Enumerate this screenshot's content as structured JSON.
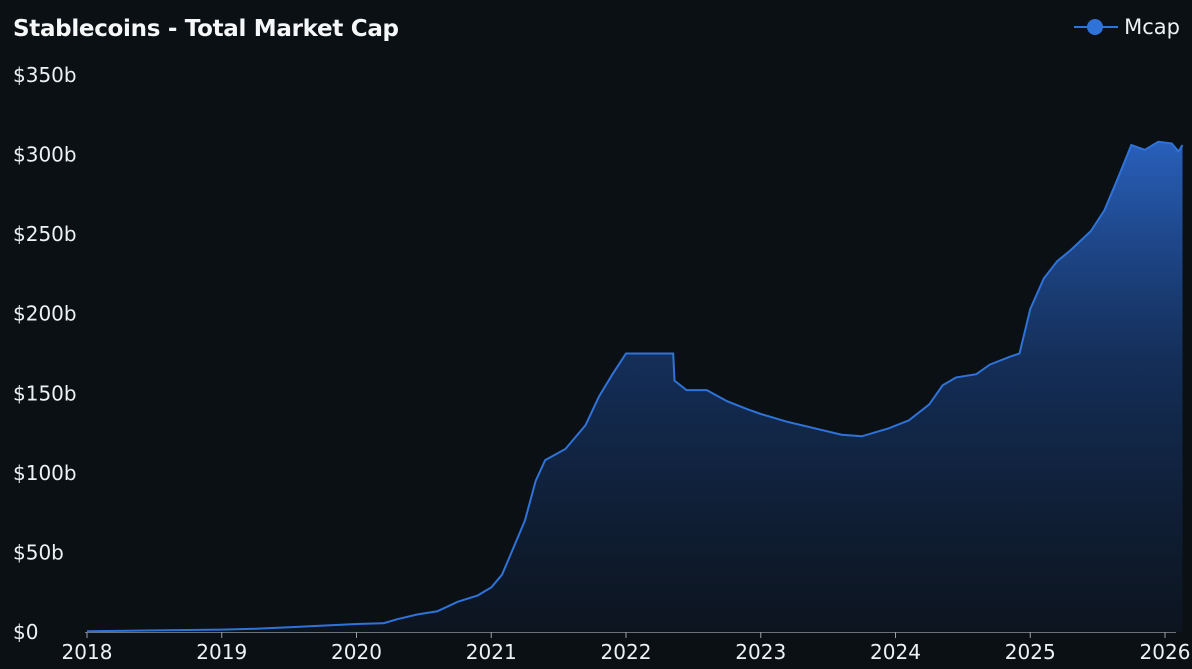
{
  "title": "Stablecoins - Total Market Cap",
  "legend": {
    "label": "Mcap",
    "color": "#2f73d9"
  },
  "y_ticks": [
    "$0",
    "$50b",
    "$100b",
    "$150b",
    "$200b",
    "$250b",
    "$300b",
    "$350b"
  ],
  "x_ticks": [
    "2018",
    "2019",
    "2020",
    "2021",
    "2022",
    "2023",
    "2024",
    "2025",
    "2026"
  ],
  "chart_data": {
    "type": "area",
    "title": "Stablecoins - Total Market Cap",
    "xlabel": "",
    "ylabel": "",
    "x_ticks": [
      "2018",
      "2019",
      "2020",
      "2021",
      "2022",
      "2023",
      "2024",
      "2025",
      "2026"
    ],
    "y_ticks": [
      "$0",
      "$50b",
      "$100b",
      "$150b",
      "$200b",
      "$250b",
      "$300b",
      "$350b"
    ],
    "ylim": [
      0,
      350
    ],
    "xlim": [
      2018,
      2026.15
    ],
    "grid": false,
    "legend_position": "top-right",
    "series": [
      {
        "name": "Mcap",
        "unit": "USD billions",
        "color": "#2f73d9",
        "x": [
          2018.0,
          2018.5,
          2019.0,
          2019.25,
          2019.5,
          2019.75,
          2020.0,
          2020.2,
          2020.3,
          2020.45,
          2020.6,
          2020.75,
          2020.9,
          2021.0,
          2021.08,
          2021.15,
          2021.25,
          2021.33,
          2021.4,
          2021.55,
          2021.7,
          2021.8,
          2021.9,
          2022.0,
          2022.1,
          2022.35,
          2022.36,
          2022.45,
          2022.6,
          2022.75,
          2022.9,
          2023.0,
          2023.2,
          2023.4,
          2023.6,
          2023.75,
          2023.95,
          2024.1,
          2024.25,
          2024.35,
          2024.45,
          2024.6,
          2024.7,
          2024.85,
          2024.92,
          2025.0,
          2025.1,
          2025.2,
          2025.3,
          2025.45,
          2025.55,
          2025.65,
          2025.75,
          2025.85,
          2025.95,
          2026.05,
          2026.1,
          2026.13
        ],
        "values": [
          0.5,
          1,
          1.5,
          2,
          3,
          4,
          5,
          5.5,
          8,
          11,
          13,
          19,
          23,
          28,
          36,
          50,
          70,
          95,
          108,
          115,
          130,
          148,
          162,
          175,
          175,
          175,
          158,
          152,
          152,
          145,
          140,
          137,
          132,
          128,
          124,
          123,
          128,
          133,
          143,
          155,
          160,
          162,
          168,
          173,
          175,
          203,
          222,
          233,
          240,
          252,
          265,
          285,
          306,
          303,
          308,
          307,
          302,
          306
        ]
      }
    ],
    "annotations": []
  }
}
